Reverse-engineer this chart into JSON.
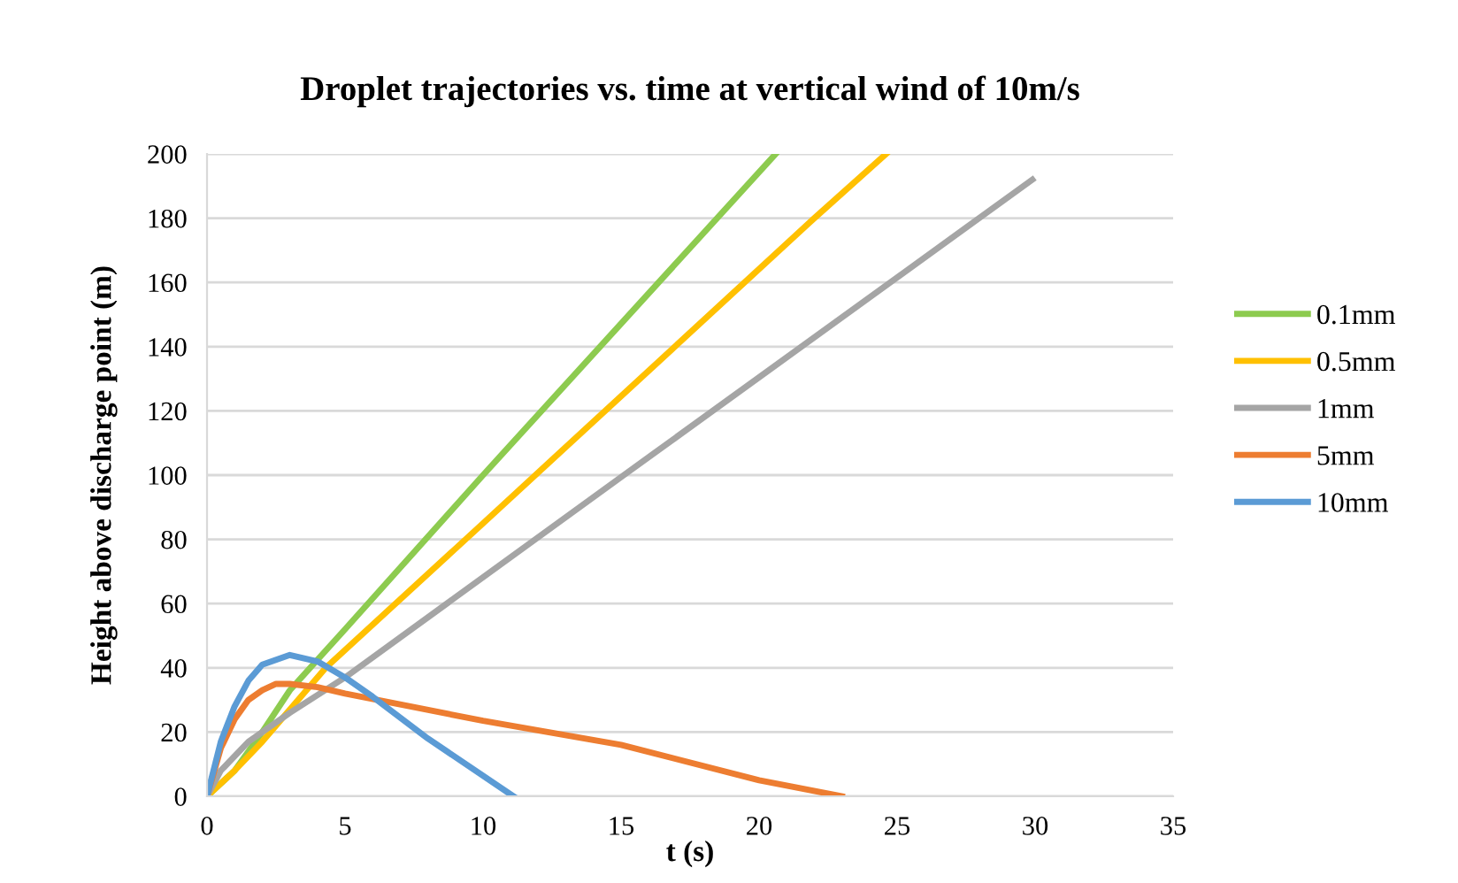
{
  "chart_data": {
    "type": "line",
    "title": "Droplet trajectories vs. time at vertical wind of 10m/s",
    "xlabel": "t (s)",
    "ylabel": "Height above discharge point (m)",
    "xlim": [
      0,
      35
    ],
    "xticks": [
      0,
      5,
      10,
      15,
      20,
      25,
      30,
      35
    ],
    "ylim": [
      0,
      200
    ],
    "yticks": [
      0,
      20,
      40,
      60,
      80,
      100,
      120,
      140,
      160,
      180,
      200
    ],
    "grid": "y",
    "legend": "right",
    "marker": "none",
    "line_style": "solid",
    "series": [
      {
        "name": "0.1mm",
        "color": "#8dcb4f",
        "x": [
          0,
          1,
          2,
          3,
          5,
          10,
          20.6
        ],
        "values": [
          0,
          8,
          20,
          33,
          52,
          100,
          200
        ]
      },
      {
        "name": "0.5mm",
        "color": "#ffc000",
        "x": [
          0,
          1,
          2,
          4.3,
          10,
          22,
          24.6
        ],
        "values": [
          0,
          8,
          17,
          40,
          85,
          180,
          200
        ]
      },
      {
        "name": "1mm",
        "color": "#a5a5a5",
        "x": [
          0,
          0.5,
          1.5,
          3,
          5,
          15.1,
          29.9
        ],
        "values": [
          0,
          8,
          17,
          26,
          37,
          100,
          192
        ]
      },
      {
        "name": "5mm",
        "color": "#ed7d31",
        "x": [
          0,
          0.5,
          1,
          1.5,
          2,
          2.5,
          3,
          4,
          5,
          10,
          15,
          20,
          23
        ],
        "values": [
          0,
          15,
          24,
          30,
          33,
          35,
          35,
          34,
          32,
          23.5,
          16,
          5,
          0
        ]
      },
      {
        "name": "10mm",
        "color": "#5b9bd5",
        "x": [
          0,
          0.5,
          1,
          1.5,
          2,
          3,
          4,
          5,
          6,
          8,
          11.1
        ],
        "values": [
          0,
          17,
          28,
          36,
          41,
          44,
          42,
          37,
          31,
          18,
          0
        ]
      }
    ]
  }
}
